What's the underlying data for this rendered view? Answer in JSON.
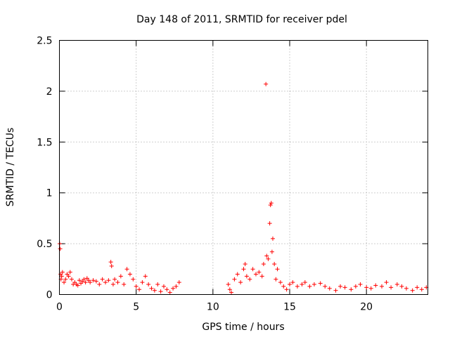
{
  "chart_data": {
    "type": "scatter",
    "title": "Day 148 of 2011, SRMTID for receiver pdel",
    "xlabel": "GPS time / hours",
    "ylabel": "SRMTID / TECUs",
    "xlim": [
      0,
      24
    ],
    "ylim": [
      0,
      2.5
    ],
    "xticks": [
      0,
      5,
      10,
      15,
      20
    ],
    "xtick_labels": [
      "0",
      "5",
      "10",
      "15",
      "20"
    ],
    "yticks": [
      0,
      0.5,
      1,
      1.5,
      2,
      2.5
    ],
    "ytick_labels": [
      "0",
      "0.5",
      "1",
      "1.5",
      "2",
      "2.5"
    ],
    "grid": true,
    "marker": "+",
    "color": "#ff0000",
    "series": [
      {
        "name": "pdel",
        "x": [
          0.02,
          0.05,
          0.08,
          0.1,
          0.15,
          0.2,
          0.3,
          0.4,
          0.5,
          0.6,
          0.7,
          0.8,
          0.9,
          1.0,
          1.1,
          1.2,
          1.3,
          1.4,
          1.5,
          1.6,
          1.7,
          1.8,
          1.9,
          2.0,
          2.2,
          2.4,
          2.6,
          2.8,
          3.0,
          3.2,
          3.35,
          3.4,
          3.5,
          3.6,
          3.8,
          4.0,
          4.2,
          4.4,
          4.6,
          4.8,
          5.0,
          5.2,
          5.4,
          5.6,
          5.8,
          6.0,
          6.2,
          6.4,
          6.6,
          6.8,
          7.0,
          7.2,
          7.4,
          7.6,
          7.8,
          11.0,
          11.1,
          11.2,
          11.4,
          11.6,
          11.8,
          12.0,
          12.1,
          12.2,
          12.4,
          12.6,
          12.8,
          13.0,
          13.2,
          13.3,
          13.45,
          13.5,
          13.6,
          13.7,
          13.75,
          13.8,
          13.85,
          13.9,
          14.0,
          14.1,
          14.2,
          14.4,
          14.6,
          14.8,
          15.0,
          15.2,
          15.5,
          15.8,
          16.0,
          16.3,
          16.6,
          17.0,
          17.3,
          17.6,
          18.0,
          18.3,
          18.6,
          19.0,
          19.3,
          19.6,
          20.0,
          20.3,
          20.6,
          21.0,
          21.3,
          21.6,
          22.0,
          22.3,
          22.6,
          23.0,
          23.3,
          23.6,
          23.9
        ],
        "y": [
          0.5,
          0.45,
          0.2,
          0.15,
          0.18,
          0.22,
          0.12,
          0.15,
          0.2,
          0.18,
          0.22,
          0.15,
          0.1,
          0.12,
          0.1,
          0.09,
          0.14,
          0.11,
          0.13,
          0.15,
          0.12,
          0.16,
          0.14,
          0.12,
          0.14,
          0.13,
          0.1,
          0.15,
          0.12,
          0.14,
          0.32,
          0.28,
          0.1,
          0.15,
          0.12,
          0.18,
          0.1,
          0.25,
          0.2,
          0.15,
          0.08,
          0.05,
          0.12,
          0.18,
          0.1,
          0.06,
          0.04,
          0.1,
          0.03,
          0.08,
          0.05,
          0.02,
          0.06,
          0.08,
          0.12,
          0.1,
          0.05,
          0.02,
          0.15,
          0.2,
          0.12,
          0.25,
          0.3,
          0.18,
          0.15,
          0.25,
          0.2,
          0.22,
          0.18,
          0.3,
          2.07,
          0.38,
          0.35,
          0.7,
          0.88,
          0.9,
          0.42,
          0.55,
          0.3,
          0.15,
          0.25,
          0.12,
          0.08,
          0.05,
          0.1,
          0.12,
          0.08,
          0.1,
          0.12,
          0.08,
          0.1,
          0.11,
          0.08,
          0.06,
          0.04,
          0.08,
          0.07,
          0.05,
          0.08,
          0.1,
          0.07,
          0.06,
          0.09,
          0.08,
          0.12,
          0.07,
          0.1,
          0.08,
          0.06,
          0.04,
          0.07,
          0.05,
          0.07
        ]
      }
    ]
  }
}
